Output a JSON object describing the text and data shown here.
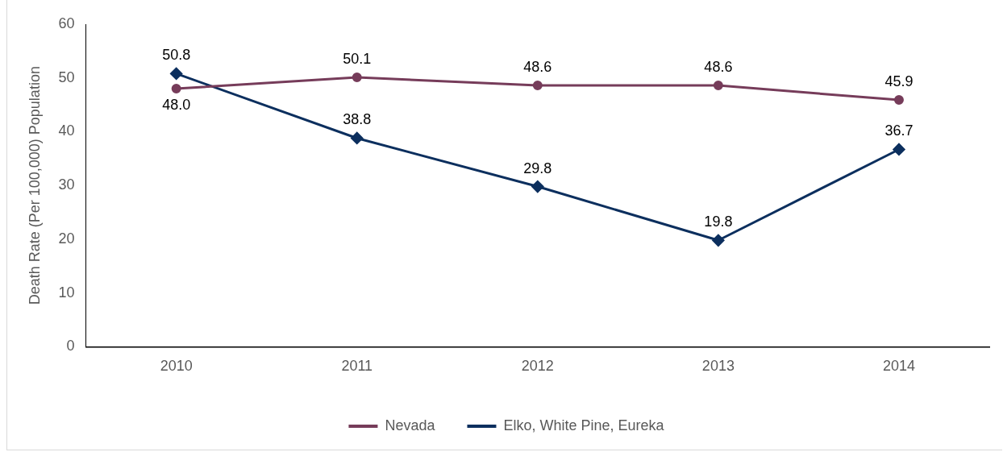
{
  "chart_data": {
    "type": "line",
    "ylabel": "Death Rate (Per 100,000) Population",
    "categories": [
      "2010",
      "2011",
      "2012",
      "2013",
      "2014"
    ],
    "series": [
      {
        "name": "Nevada",
        "color": "#763c5a",
        "marker": "circle",
        "values": [
          48.0,
          50.1,
          48.6,
          48.6,
          45.9
        ],
        "value_labels": [
          "48.0",
          "50.1",
          "48.6",
          "48.6",
          "45.9"
        ]
      },
      {
        "name": "Elko, White Pine, Eureka",
        "color": "#0c2f5e",
        "marker": "diamond",
        "values": [
          50.8,
          38.8,
          29.8,
          19.8,
          36.7
        ],
        "value_labels": [
          "50.8",
          "38.8",
          "29.8",
          "19.8",
          "36.7"
        ]
      }
    ],
    "ylim": [
      0,
      60
    ],
    "yticks": [
      0,
      10,
      20,
      30,
      40,
      50,
      60
    ],
    "grid": false,
    "legend": "bottom",
    "line_style": "solid"
  }
}
